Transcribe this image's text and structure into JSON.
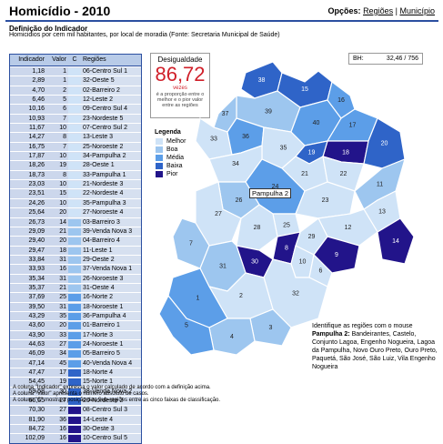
{
  "header": {
    "title": "Homicídio - 2010",
    "options_label": "Opções:",
    "options": [
      "Regiões",
      "Município"
    ],
    "separator": "|"
  },
  "definition": {
    "title": "Definição do Indicador",
    "text": "Homicidios por cem mil habitantes, por local de moradia (Fonte: Secretaria Municipal de Saúde)"
  },
  "table": {
    "headers": [
      "Indicador",
      "Valor",
      "C",
      "Regiões"
    ],
    "rows": [
      {
        "ind": "1,18",
        "val": "1",
        "c": 1,
        "reg": "06-Centro Sul 1"
      },
      {
        "ind": "2,89",
        "val": "1",
        "c": 1,
        "reg": "32-Oeste 5"
      },
      {
        "ind": "4,70",
        "val": "2",
        "c": 1,
        "reg": "02-Barreiro 2"
      },
      {
        "ind": "6,46",
        "val": "5",
        "c": 1,
        "reg": "12-Leste 2"
      },
      {
        "ind": "10,16",
        "val": "6",
        "c": 1,
        "reg": "09-Centro Sul 4"
      },
      {
        "ind": "10,93",
        "val": "7",
        "c": 1,
        "reg": "23-Nordeste 5"
      },
      {
        "ind": "11,67",
        "val": "10",
        "c": 1,
        "reg": "07-Centro Sul 2"
      },
      {
        "ind": "14,27",
        "val": "8",
        "c": 1,
        "reg": "13-Leste 3"
      },
      {
        "ind": "16,75",
        "val": "7",
        "c": 1,
        "reg": "25-Noroeste 2"
      },
      {
        "ind": "17,87",
        "val": "10",
        "c": 1,
        "reg": "34-Pampulha 2"
      },
      {
        "ind": "18,26",
        "val": "19",
        "c": 1,
        "reg": "28-Oeste 1"
      },
      {
        "ind": "18,73",
        "val": "8",
        "c": 1,
        "reg": "33-Pampulha 1"
      },
      {
        "ind": "23,03",
        "val": "10",
        "c": 1,
        "reg": "21-Nordeste 3"
      },
      {
        "ind": "23,51",
        "val": "15",
        "c": 1,
        "reg": "22-Nordeste 4"
      },
      {
        "ind": "24,26",
        "val": "10",
        "c": 1,
        "reg": "35-Pampulha 3"
      },
      {
        "ind": "25,64",
        "val": "20",
        "c": 1,
        "reg": "27-Noroeste 4"
      },
      {
        "ind": "26,73",
        "val": "14",
        "c": 2,
        "reg": "03-Barreiro 3"
      },
      {
        "ind": "29,09",
        "val": "21",
        "c": 2,
        "reg": "39-Venda Nova 3"
      },
      {
        "ind": "29,40",
        "val": "20",
        "c": 2,
        "reg": "04-Barreiro 4"
      },
      {
        "ind": "29,47",
        "val": "18",
        "c": 2,
        "reg": "11-Leste 1"
      },
      {
        "ind": "33,84",
        "val": "31",
        "c": 2,
        "reg": "29-Oeste 2"
      },
      {
        "ind": "33,93",
        "val": "16",
        "c": 2,
        "reg": "37-Venda Nova 1"
      },
      {
        "ind": "35,34",
        "val": "31",
        "c": 2,
        "reg": "26-Noroeste 3"
      },
      {
        "ind": "35,37",
        "val": "21",
        "c": 2,
        "reg": "31-Oeste 4"
      },
      {
        "ind": "37,69",
        "val": "25",
        "c": 3,
        "reg": "16-Norte 2"
      },
      {
        "ind": "39,50",
        "val": "31",
        "c": 3,
        "reg": "18-Noroeste 1"
      },
      {
        "ind": "43,29",
        "val": "35",
        "c": 3,
        "reg": "36-Pampulha 4"
      },
      {
        "ind": "43,60",
        "val": "20",
        "c": 3,
        "reg": "01-Barreiro 1"
      },
      {
        "ind": "43,90",
        "val": "33",
        "c": 3,
        "reg": "17-Norte 3"
      },
      {
        "ind": "44,63",
        "val": "27",
        "c": 3,
        "reg": "24-Noroeste 1"
      },
      {
        "ind": "46,09",
        "val": "34",
        "c": 3,
        "reg": "05-Barreiro 5"
      },
      {
        "ind": "47,14",
        "val": "45",
        "c": 3,
        "reg": "40-Venda Nova 4"
      },
      {
        "ind": "47,47",
        "val": "17",
        "c": 4,
        "reg": "18-Norte 4"
      },
      {
        "ind": "54,45",
        "val": "19",
        "c": 4,
        "reg": "15-Norte 1"
      },
      {
        "ind": "59,58",
        "val": "30",
        "c": 4,
        "reg": "38-Venda Nova 2"
      },
      {
        "ind": "66,55",
        "val": "27",
        "c": 4,
        "reg": "20-Nordeste 2"
      },
      {
        "ind": "70,30",
        "val": "27",
        "c": 5,
        "reg": "08-Centro Sul 3"
      },
      {
        "ind": "81,90",
        "val": "36",
        "c": 5,
        "reg": "14-Leste 4"
      },
      {
        "ind": "84,72",
        "val": "16",
        "c": 5,
        "reg": "30-Oeste 3"
      },
      {
        "ind": "102,09",
        "val": "16",
        "c": 5,
        "reg": "10-Centro Sul 5"
      }
    ]
  },
  "inequality": {
    "label": "Desigualdade",
    "value": "86,72",
    "unit": "vezes",
    "desc": "é a proporção entre o melhor e o pior valor entre as regiões"
  },
  "bh": {
    "label": "BH:",
    "value": "32,46",
    "sep": "/",
    "count": "756"
  },
  "legend": {
    "title": "Legenda",
    "items": [
      {
        "label": "Melhor",
        "color": "#cfe3f7"
      },
      {
        "label": "Boa",
        "color": "#9dc6ef"
      },
      {
        "label": "Média",
        "color": "#5c9ee8"
      },
      {
        "label": "Baixa",
        "color": "#2f64c8"
      },
      {
        "label": "Pior",
        "color": "#22148a"
      }
    ]
  },
  "class_colors": [
    "#cfe3f7",
    "#9dc6ef",
    "#5c9ee8",
    "#2f64c8",
    "#22148a"
  ],
  "map": {
    "numbers": [
      "38",
      "15",
      "39",
      "40",
      "16",
      "17",
      "18",
      "37",
      "19",
      "20",
      "33",
      "36",
      "35",
      "34",
      "21",
      "22",
      "24",
      "26",
      "23",
      "25",
      "11",
      "27",
      "13",
      "12",
      "14",
      "28",
      "29",
      "9",
      "8",
      "10",
      "6",
      "7",
      "30",
      "31",
      "32",
      "2",
      "1",
      "3",
      "4",
      "5"
    ]
  },
  "tooltip": "Pampulha 2",
  "info": {
    "line1": "Identifique as regiões com o mouse",
    "region": "Pampulha 2:",
    "text": "Bandeirantes, Castelo, Conjunto Lagoa, Engenho Nogueira, Lagoa da Pampulha, Novo Ouro Preto, Ouro Preto, Paquetá, São José, São Luiz, Vila Engenho Nogueira"
  },
  "footnotes": [
    "A coluna \"Indicador\" expressa o valor calculado de acordo com a definição acima.",
    "A coluna \"Valor\" apresenta o número absoluto de casos.",
    "A coluna \"C\" mostra a posição das Sub-regiões entre as cinco faixas de classificação."
  ]
}
